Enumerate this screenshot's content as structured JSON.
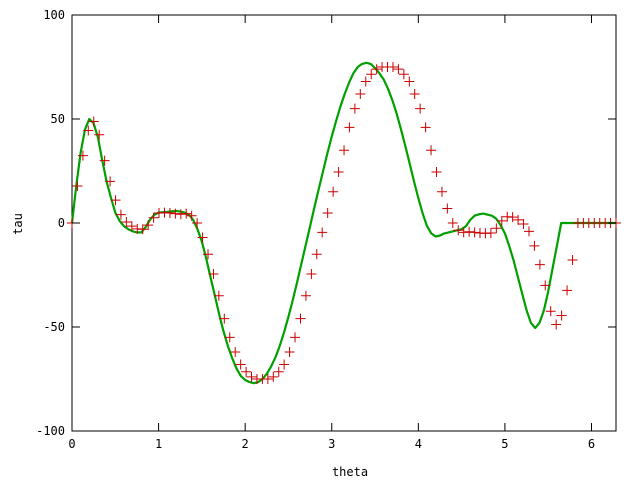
{
  "chart_data": {
    "type": "line",
    "title": "",
    "xlabel": "theta",
    "ylabel": "tau",
    "xlim": [
      0,
      6.283
    ],
    "ylim": [
      -100,
      100
    ],
    "x_ticks": [
      0,
      1,
      2,
      3,
      4,
      5,
      6
    ],
    "y_ticks": [
      -100,
      -50,
      0,
      50,
      100
    ],
    "grid": false,
    "legend": "none",
    "series": [
      {
        "style": "markers",
        "marker": "plus",
        "color": "#cc0000",
        "x": [
          0.0,
          0.063,
          0.126,
          0.188,
          0.251,
          0.314,
          0.377,
          0.44,
          0.503,
          0.565,
          0.628,
          0.691,
          0.754,
          0.817,
          0.88,
          0.942,
          1.005,
          1.068,
          1.131,
          1.194,
          1.257,
          1.319,
          1.382,
          1.445,
          1.508,
          1.571,
          1.634,
          1.696,
          1.759,
          1.822,
          1.885,
          1.948,
          2.011,
          2.073,
          2.136,
          2.199,
          2.262,
          2.325,
          2.388,
          2.45,
          2.513,
          2.576,
          2.639,
          2.702,
          2.765,
          2.827,
          2.89,
          2.953,
          3.016,
          3.079,
          3.142,
          3.204,
          3.267,
          3.33,
          3.393,
          3.456,
          3.519,
          3.581,
          3.644,
          3.707,
          3.77,
          3.833,
          3.896,
          3.958,
          4.021,
          4.084,
          4.147,
          4.21,
          4.273,
          4.335,
          4.398,
          4.461,
          4.524,
          4.587,
          4.65,
          4.712,
          4.775,
          4.838,
          4.901,
          4.964,
          5.027,
          5.089,
          5.152,
          5.215,
          5.278,
          5.341,
          5.404,
          5.466,
          5.529,
          5.592,
          5.655,
          5.718,
          5.781,
          5.843,
          5.906,
          5.969,
          6.032,
          6.095,
          6.158,
          6.22,
          6.283
        ],
        "y": [
          0.0,
          17.8,
          32.4,
          44.5,
          48.8,
          42.4,
          30.0,
          20.0,
          11.0,
          4.0,
          0.5,
          -1.5,
          -2.8,
          -3.0,
          -1.0,
          2.5,
          4.8,
          5.0,
          4.8,
          4.5,
          4.2,
          4.5,
          3.5,
          0.0,
          -7.0,
          -15.0,
          -24.5,
          -35.0,
          -46.0,
          -55.0,
          -62.0,
          -68.0,
          -71.5,
          -74.0,
          -75.0,
          -75.0,
          -75.0,
          -74.0,
          -71.5,
          -68.0,
          -62.0,
          -55.0,
          -46.0,
          -35.0,
          -24.5,
          -15.0,
          -4.5,
          4.8,
          15.0,
          24.5,
          35.0,
          46.0,
          55.0,
          62.0,
          68.0,
          71.5,
          74.0,
          75.0,
          75.0,
          75.0,
          74.0,
          71.5,
          68.0,
          62.0,
          55.0,
          46.0,
          35.0,
          24.5,
          15.0,
          7.0,
          0.0,
          -3.5,
          -4.5,
          -4.2,
          -4.5,
          -4.8,
          -5.0,
          -4.8,
          -2.5,
          1.0,
          3.0,
          2.8,
          1.5,
          -0.5,
          -4.0,
          -11.0,
          -20.0,
          -30.0,
          -42.4,
          -48.8,
          -44.5,
          -32.4,
          -17.8,
          0.0,
          0.0,
          0.0,
          0.0,
          0.0,
          0.0,
          0.0,
          0.0
        ]
      },
      {
        "style": "line",
        "color": "#00a000",
        "x": [
          0.0,
          0.05,
          0.1,
          0.15,
          0.2,
          0.25,
          0.3,
          0.35,
          0.4,
          0.45,
          0.5,
          0.55,
          0.6,
          0.65,
          0.7,
          0.75,
          0.8,
          0.85,
          0.9,
          0.95,
          1.0,
          1.05,
          1.1,
          1.15,
          1.2,
          1.25,
          1.3,
          1.35,
          1.4,
          1.45,
          1.5,
          1.55,
          1.6,
          1.65,
          1.7,
          1.75,
          1.8,
          1.85,
          1.9,
          1.95,
          2.0,
          2.05,
          2.1,
          2.15,
          2.2,
          2.25,
          2.3,
          2.35,
          2.4,
          2.45,
          2.5,
          2.55,
          2.6,
          2.65,
          2.7,
          2.75,
          2.8,
          2.85,
          2.9,
          2.95,
          3.0,
          3.05,
          3.1,
          3.15,
          3.2,
          3.25,
          3.3,
          3.35,
          3.4,
          3.45,
          3.5,
          3.55,
          3.6,
          3.65,
          3.7,
          3.75,
          3.8,
          3.85,
          3.9,
          3.95,
          4.0,
          4.05,
          4.1,
          4.15,
          4.2,
          4.25,
          4.3,
          4.35,
          4.4,
          4.45,
          4.5,
          4.55,
          4.6,
          4.65,
          4.7,
          4.75,
          4.8,
          4.85,
          4.9,
          4.95,
          5.0,
          5.05,
          5.1,
          5.15,
          5.2,
          5.25,
          5.3,
          5.35,
          5.4,
          5.45,
          5.5,
          5.55,
          5.6,
          5.65,
          5.7,
          5.75,
          5.8,
          5.85,
          5.9,
          5.95,
          6.0,
          6.05,
          6.1,
          6.15,
          6.2,
          6.25,
          6.283
        ],
        "y": [
          0.0,
          18.0,
          34.0,
          45.0,
          50.0,
          48.0,
          41.0,
          30.0,
          20.0,
          12.0,
          5.0,
          1.0,
          -1.5,
          -3.0,
          -4.0,
          -4.5,
          -4.5,
          -2.0,
          1.5,
          4.0,
          5.0,
          5.2,
          5.4,
          5.6,
          5.8,
          5.5,
          5.0,
          4.0,
          1.5,
          -3.0,
          -9.0,
          -17.0,
          -26.0,
          -35.0,
          -44.0,
          -52.0,
          -59.0,
          -65.0,
          -70.0,
          -73.5,
          -75.5,
          -76.5,
          -77.0,
          -76.5,
          -75.0,
          -72.5,
          -69.0,
          -64.5,
          -59.0,
          -52.5,
          -45.0,
          -37.0,
          -28.5,
          -19.5,
          -10.5,
          -1.5,
          7.5,
          16.5,
          25.0,
          33.5,
          41.5,
          49.0,
          56.0,
          62.0,
          67.5,
          72.0,
          75.0,
          76.5,
          77.0,
          76.5,
          74.5,
          72.0,
          69.0,
          64.5,
          59.0,
          52.5,
          45.0,
          37.0,
          28.5,
          20.0,
          12.0,
          4.5,
          -1.5,
          -5.0,
          -6.5,
          -6.0,
          -5.0,
          -4.5,
          -4.0,
          -3.5,
          -3.0,
          -1.5,
          1.5,
          3.5,
          4.2,
          4.5,
          4.0,
          3.5,
          2.0,
          -1.0,
          -5.0,
          -11.0,
          -18.0,
          -26.0,
          -34.0,
          -42.0,
          -48.0,
          -50.5,
          -48.0,
          -42.0,
          -33.0,
          -22.0,
          -11.0,
          0.0,
          0.0,
          0.0,
          0.0,
          0.0,
          0.0,
          0.0,
          0.0,
          0.0,
          0.0,
          0.0,
          0.0,
          0.0,
          0.0
        ]
      }
    ]
  }
}
